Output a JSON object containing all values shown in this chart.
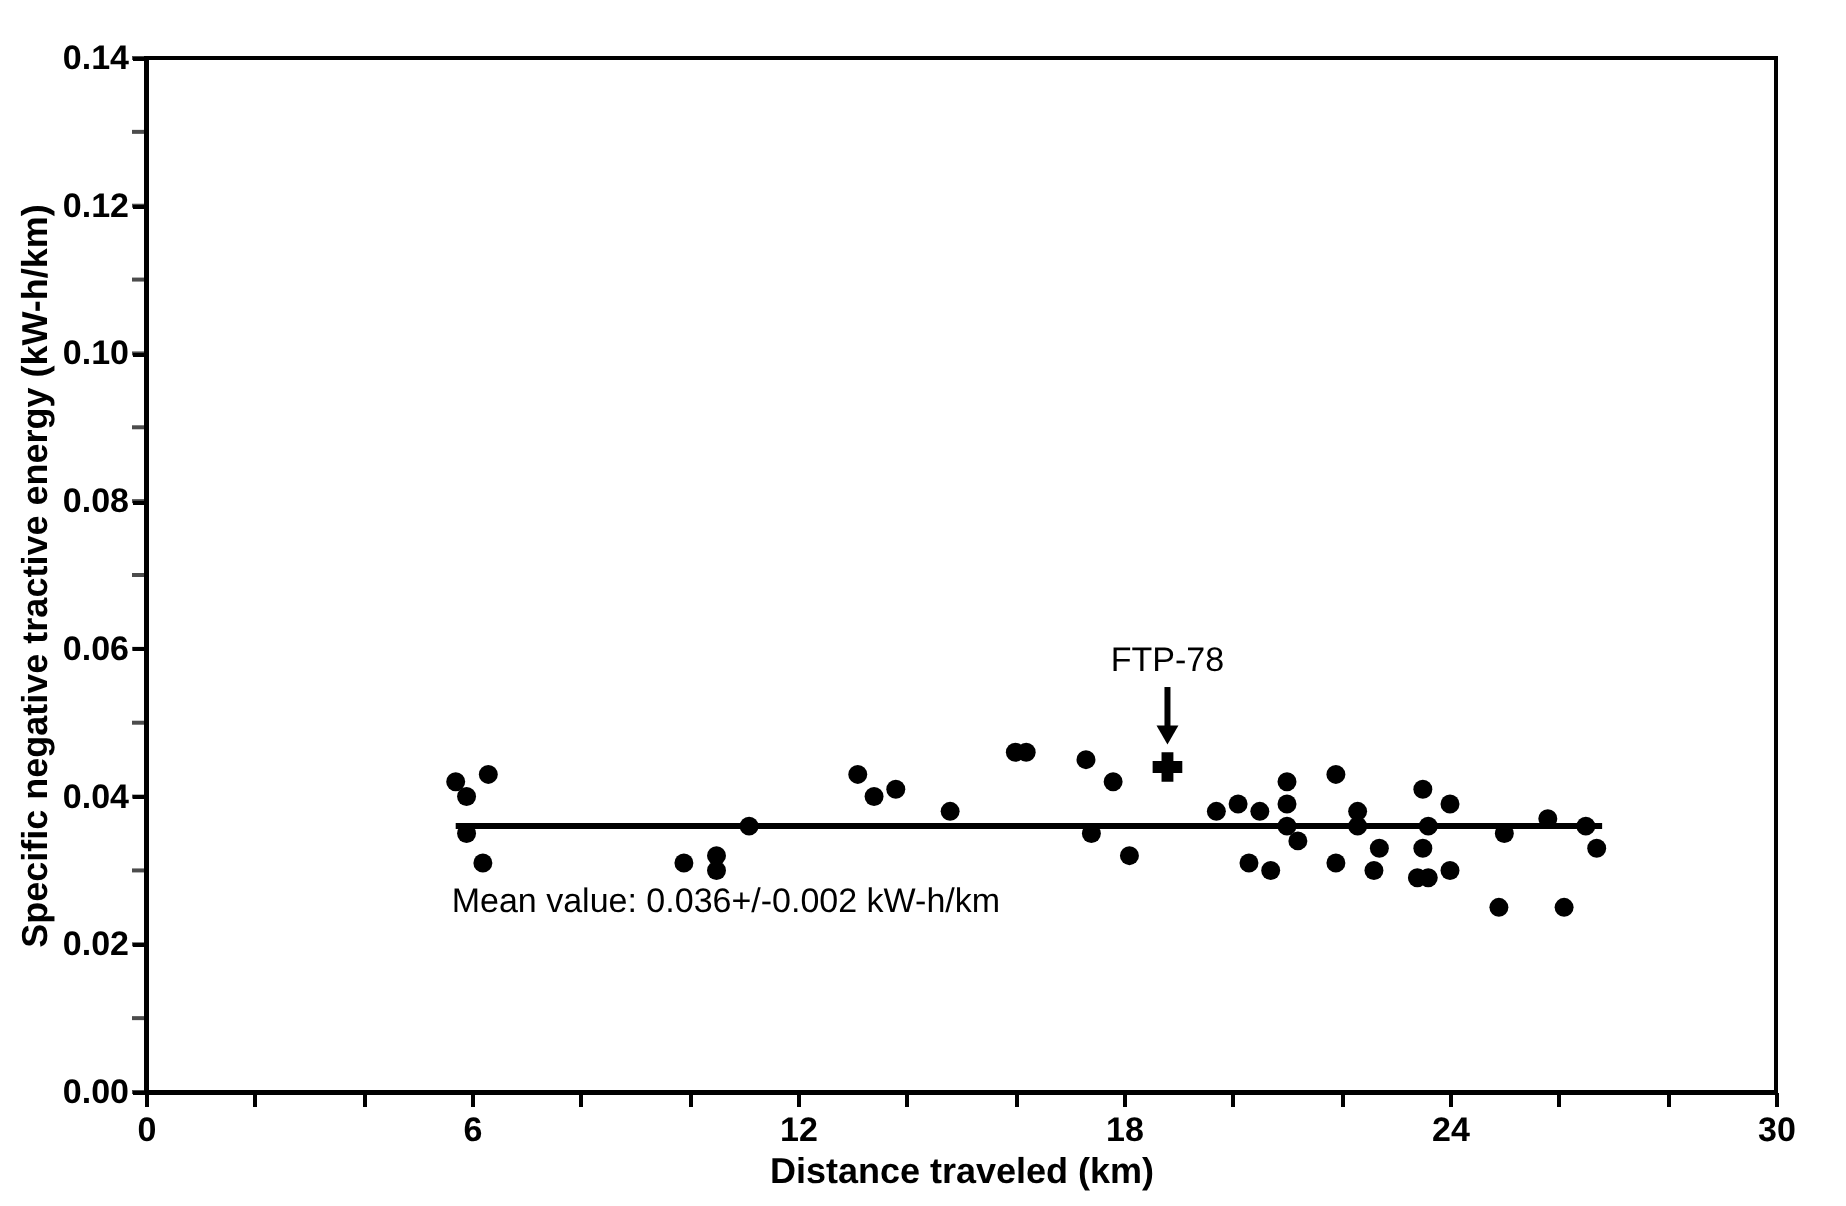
{
  "chart_data": {
    "type": "scatter",
    "xlabel": "Distance traveled (km)",
    "ylabel": "Specific negative tractive energy (kW-h/km)",
    "xlim": [
      0,
      30
    ],
    "xticks": [
      0,
      {
        "value": 2,
        "label": null
      },
      {
        "value": 4,
        "label": null
      },
      6,
      {
        "value": 8,
        "label": null
      },
      {
        "value": 10,
        "label": null
      },
      12,
      {
        "value": 14,
        "label": null
      },
      {
        "value": 16,
        "label": null
      },
      18,
      {
        "value": 20,
        "label": null
      },
      {
        "value": 22,
        "label": null
      },
      24,
      {
        "value": 26,
        "label": null
      },
      {
        "value": 28,
        "label": null
      },
      30
    ],
    "ylim": [
      0,
      0.14
    ],
    "yticks": [
      {
        "value": 0,
        "label": "0.00"
      },
      {
        "value": 0.01,
        "label": null
      },
      {
        "value": 0.02,
        "label": "0.02"
      },
      {
        "value": 0.03,
        "label": null
      },
      {
        "value": 0.04,
        "label": "0.04"
      },
      {
        "value": 0.05,
        "label": null
      },
      {
        "value": 0.06,
        "label": "0.06"
      },
      {
        "value": 0.07,
        "label": null
      },
      {
        "value": 0.08,
        "label": "0.08"
      },
      {
        "value": 0.09,
        "label": null
      },
      {
        "value": 0.1,
        "label": "0.10"
      },
      {
        "value": 0.11,
        "label": null
      },
      {
        "value": 0.12,
        "label": "0.12"
      },
      {
        "value": 0.13,
        "label": null
      },
      {
        "value": 0.14,
        "label": "0.14"
      }
    ],
    "grid": false,
    "series": [
      {
        "type": "scatter",
        "marker": "circle",
        "color": "#000000",
        "x": [
          5.7,
          5.9,
          6.3,
          5.9,
          6.2,
          9.9,
          10.5,
          10.5,
          11.1,
          13.1,
          13.4,
          13.8,
          14.8,
          16.0,
          16.2,
          17.3,
          17.4,
          17.8,
          18.1,
          19.7,
          20.1,
          20.3,
          20.5,
          20.7,
          21.0,
          21.0,
          21.0,
          21.2,
          21.9,
          21.9,
          22.3,
          22.3,
          22.6,
          22.7,
          23.4,
          23.6,
          23.5,
          23.5,
          23.6,
          24.0,
          24.0,
          24.9,
          25.0,
          25.8,
          26.1,
          26.5,
          26.7
        ],
        "values": [
          0.042,
          0.04,
          0.043,
          0.035,
          0.031,
          0.031,
          0.032,
          0.03,
          0.036,
          0.043,
          0.04,
          0.041,
          0.038,
          0.046,
          0.046,
          0.045,
          0.035,
          0.042,
          0.032,
          0.038,
          0.039,
          0.031,
          0.038,
          0.03,
          0.042,
          0.039,
          0.036,
          0.034,
          0.043,
          0.031,
          0.038,
          0.036,
          0.03,
          0.033,
          0.029,
          0.029,
          0.041,
          0.033,
          0.036,
          0.03,
          0.039,
          0.025,
          0.035,
          0.037,
          0.025,
          0.036,
          0.033
        ]
      },
      {
        "type": "scatter",
        "marker": "cross",
        "color": "#000000",
        "x": [
          18.8
        ],
        "values": [
          0.044
        ]
      },
      {
        "type": "line",
        "line_style": "solid",
        "color": "#000000",
        "x": [
          5.7,
          26.8
        ],
        "values": [
          0.036,
          0.036
        ]
      }
    ],
    "annotations": [
      {
        "text": "FTP-78",
        "x": 18.8,
        "y": 0.044
      },
      {
        "text": "Mean value: 0.036+/-0.002 kW-h/km",
        "x": 5.7,
        "y": 0.036
      }
    ]
  }
}
